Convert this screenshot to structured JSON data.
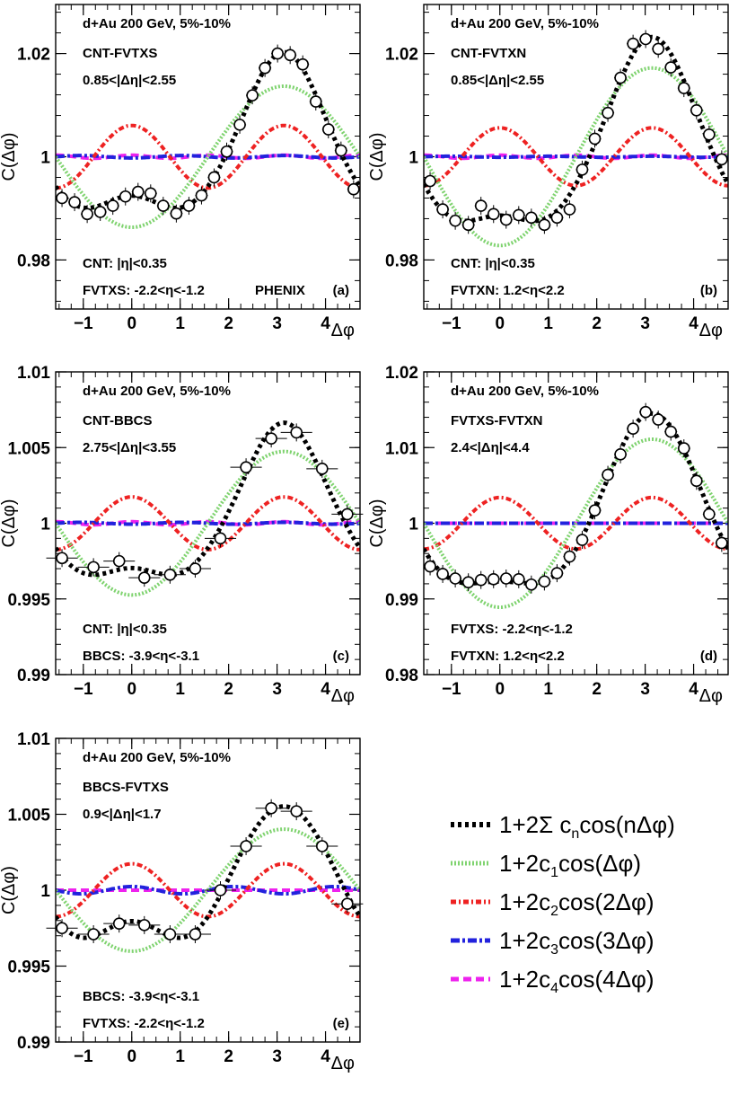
{
  "legend": {
    "entries": [
      {
        "key": "total",
        "color": "#000000",
        "dash": "4 4",
        "width": 5,
        "base": "1+2Σ c",
        "sub": "n",
        "rest": "cos(nΔφ)"
      },
      {
        "key": "c1",
        "color": "#7fd36f",
        "dash": "2 2",
        "width": 4,
        "base": "1+2c",
        "sub": "1",
        "rest": "cos(Δφ)"
      },
      {
        "key": "c2",
        "color": "#ee2222",
        "dash": "6 3 2 3",
        "width": 4,
        "base": "1+2c",
        "sub": "2",
        "rest": "cos(2Δφ)"
      },
      {
        "key": "c3",
        "color": "#2222dd",
        "dash": "10 3 3 3",
        "width": 4,
        "base": "1+2c",
        "sub": "3",
        "rest": "cos(3Δφ)"
      },
      {
        "key": "c4",
        "color": "#ee22ee",
        "dash": "9 5",
        "width": 4,
        "base": "1+2c",
        "sub": "4",
        "rest": "cos(4Δφ)"
      }
    ]
  },
  "chart_data": [
    {
      "type": "scatter",
      "panel": "(a)",
      "labels": [
        "d+Au 200 GeV, 5%-10%",
        "CNT-FVTXS",
        "0.85<|Δη|<2.55"
      ],
      "bottom_labels": [
        "CNT: |η|<0.35",
        "FVTXS: -2.2<η<-1.2"
      ],
      "extra_label": "PHENIX",
      "ylabel": "C(Δφ)",
      "xlabel": "Δφ",
      "xlim": [
        -1.5708,
        4.7124
      ],
      "ylim": [
        0.9705,
        1.0295
      ],
      "yticks": [
        0.98,
        1,
        1.02
      ],
      "ytick_labels": [
        "0.98",
        "1",
        "1.02"
      ],
      "xticks": [
        -1,
        0,
        1,
        2,
        3,
        4
      ],
      "xtick_labels": [
        "−1",
        "0",
        "1",
        "2",
        "3",
        "4"
      ],
      "coefficients": {
        "c1": -0.00683,
        "c2": 0.00303,
        "c3": -0.00012,
        "c4": 0.00015
      },
      "points": {
        "x": [
          -1.44,
          -1.18,
          -0.92,
          -0.65,
          -0.39,
          -0.13,
          0.13,
          0.39,
          0.65,
          0.92,
          1.18,
          1.44,
          1.7,
          1.96,
          2.23,
          2.49,
          2.75,
          3.01,
          3.27,
          3.53,
          3.8,
          4.06,
          4.32,
          4.58
        ],
        "y": [
          0.992,
          0.9912,
          0.9889,
          0.9893,
          0.9905,
          0.9923,
          0.9932,
          0.9929,
          0.9905,
          0.989,
          0.9905,
          0.9925,
          0.996,
          1.001,
          1.0062,
          1.0119,
          1.0172,
          1.02,
          1.0197,
          1.0179,
          1.0107,
          1.0053,
          1.0012,
          0.9937
        ]
      }
    },
    {
      "type": "scatter",
      "panel": "(b)",
      "labels": [
        "d+Au 200 GeV, 5%-10%",
        "CNT-FVTXN",
        "0.85<|Δη|<2.55"
      ],
      "bottom_labels": [
        "CNT: |η|<0.35",
        "FVTXN: 1.2<η<2.2"
      ],
      "ylabel": "C(Δφ)",
      "xlabel": "Δφ",
      "xlim": [
        -1.5708,
        4.7124
      ],
      "ylim": [
        0.9705,
        1.0295
      ],
      "yticks": [
        0.98,
        1,
        1.02
      ],
      "ytick_labels": [
        "0.98",
        "1",
        "1.02"
      ],
      "xticks": [
        -1,
        0,
        1,
        2,
        3,
        4
      ],
      "xtick_labels": [
        "−1",
        "0",
        "1",
        "2",
        "3",
        "4"
      ],
      "coefficients": {
        "c1": -0.0086,
        "c2": 0.0028,
        "c3": -5e-05,
        "c4": 0.00015
      },
      "points": {
        "x": [
          -1.44,
          -1.18,
          -0.92,
          -0.65,
          -0.39,
          -0.13,
          0.13,
          0.39,
          0.65,
          0.92,
          1.18,
          1.44,
          1.7,
          1.96,
          2.23,
          2.49,
          2.75,
          3.01,
          3.27,
          3.53,
          3.8,
          4.06,
          4.32,
          4.58
        ],
        "y": [
          0.9953,
          0.9898,
          0.9876,
          0.9868,
          0.9905,
          0.9889,
          0.9878,
          0.9887,
          0.9882,
          0.9868,
          0.9882,
          0.9898,
          0.9975,
          1.0035,
          1.0085,
          1.0153,
          1.0219,
          1.0228,
          1.0209,
          1.0173,
          1.0133,
          1.009,
          1.0043,
          0.9995
        ]
      }
    },
    {
      "type": "scatter",
      "panel": "(c)",
      "labels": [
        "d+Au 200 GeV, 5%-10%",
        "CNT-BBCS",
        "2.75<|Δη|<3.55"
      ],
      "bottom_labels": [
        "CNT: |η|<0.35",
        "BBCS: -3.9<η<-3.1"
      ],
      "ylabel": "C(Δφ)",
      "xlabel": "Δφ",
      "xlim": [
        -1.5708,
        4.7124
      ],
      "ylim": [
        0.99,
        1.01
      ],
      "yticks": [
        0.99,
        0.995,
        1,
        1.005,
        1.01
      ],
      "ytick_labels": [
        "0.99",
        "0.995",
        "1",
        "1.005",
        "1.01"
      ],
      "xticks": [
        -1,
        0,
        1,
        2,
        3,
        4
      ],
      "xtick_labels": [
        "−1",
        "0",
        "1",
        "2",
        "3",
        "4"
      ],
      "coefficients": {
        "c1": -0.00237,
        "c2": 0.00087,
        "c3": -3e-05,
        "c4": 5e-05
      },
      "points": {
        "x": [
          -1.44,
          -0.79,
          -0.26,
          0.26,
          0.79,
          1.31,
          1.83,
          2.36,
          2.88,
          3.4,
          3.93,
          4.45
        ],
        "y": [
          0.9977,
          0.9971,
          0.9975,
          0.9964,
          0.9966,
          0.997,
          0.999,
          1.0037,
          1.0056,
          1.006,
          1.0036,
          1.0006
        ]
      }
    },
    {
      "type": "scatter",
      "panel": "(d)",
      "labels": [
        "d+Au 200 GeV, 5%-10%",
        "FVTXS-FVTXN",
        "2.4<|Δη|<4.4"
      ],
      "bottom_labels": [
        "FVTXS: -2.2<η<-1.2",
        "FVTXN: 1.2<η<2.2"
      ],
      "ylabel": "C(Δφ)",
      "xlabel": "Δφ",
      "xlim": [
        -1.5708,
        4.7124
      ],
      "ylim": [
        0.98,
        1.02
      ],
      "yticks": [
        0.98,
        0.99,
        1,
        1.01,
        1.02
      ],
      "ytick_labels": [
        "0.98",
        "0.99",
        "1",
        "1.01",
        "1.02"
      ],
      "xticks": [
        -1,
        0,
        1,
        2,
        3,
        4
      ],
      "xtick_labels": [
        "−1",
        "0",
        "1",
        "2",
        "3",
        "4"
      ],
      "coefficients": {
        "c1": -0.00555,
        "c2": 0.0017,
        "c3": 0.0,
        "c4": 0.0
      },
      "points": {
        "x": [
          -1.44,
          -1.18,
          -0.92,
          -0.65,
          -0.39,
          -0.13,
          0.13,
          0.39,
          0.65,
          0.92,
          1.18,
          1.44,
          1.7,
          1.96,
          2.23,
          2.49,
          2.75,
          3.01,
          3.27,
          3.53,
          3.8,
          4.06,
          4.32,
          4.58
        ],
        "y": [
          0.9943,
          0.9933,
          0.9927,
          0.9922,
          0.9925,
          0.9926,
          0.9927,
          0.9926,
          0.9919,
          0.9923,
          0.9934,
          0.9956,
          0.9978,
          1.0017,
          1.0064,
          1.0091,
          1.0125,
          1.0147,
          1.0137,
          1.0121,
          1.0099,
          1.0056,
          1.0012,
          0.9974
        ]
      }
    },
    {
      "type": "scatter",
      "panel": "(e)",
      "labels": [
        "d+Au 200 GeV, 5%-10%",
        "BBCS-FVTXS",
        "0.9<|Δη|<1.7"
      ],
      "bottom_labels": [
        "BBCS: -3.9<η<-3.1",
        "FVTXS: -2.2<η<-1.2"
      ],
      "ylabel": "C(Δφ)",
      "xlabel": "Δφ",
      "xlim": [
        -1.5708,
        4.7124
      ],
      "ylim": [
        0.99,
        1.01
      ],
      "yticks": [
        0.99,
        0.995,
        1,
        1.005,
        1.01
      ],
      "ytick_labels": [
        "0.99",
        "0.995",
        "1",
        "1.005",
        "1.01"
      ],
      "xticks": [
        -1,
        0,
        1,
        2,
        3,
        4
      ],
      "xtick_labels": [
        "−1",
        "0",
        "1",
        "2",
        "3",
        "4"
      ],
      "coefficients": {
        "c1": -0.00201,
        "c2": 0.00087,
        "c3": 0.00012,
        "c4": 0.0
      },
      "points": {
        "x": [
          -1.44,
          -0.79,
          -0.26,
          0.26,
          0.79,
          1.31,
          1.83,
          2.36,
          2.88,
          3.4,
          3.93,
          4.45
        ],
        "y": [
          0.9975,
          0.9971,
          0.9978,
          0.9977,
          0.9971,
          0.9971,
          1.0,
          1.0029,
          1.0054,
          1.0052,
          1.0029,
          0.9991
        ]
      }
    }
  ]
}
